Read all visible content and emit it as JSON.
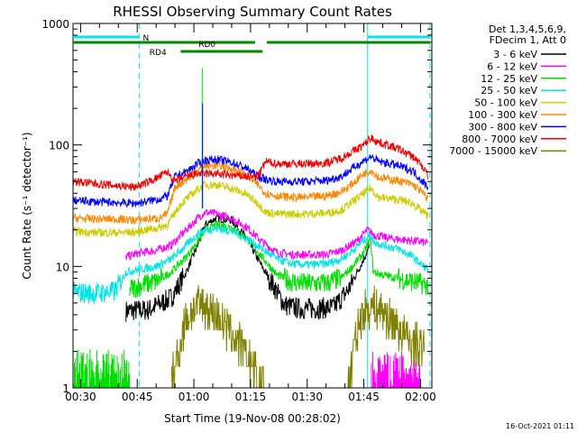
{
  "chart_data": {
    "type": "line",
    "title": "RHESSI Observing Summary Count Rates",
    "xlabel": "Start Time (19-Nov-08 00:28:02)",
    "ylabel": "Count Rate (s⁻¹ detector⁻¹)",
    "yscale": "log",
    "xlim_minutes": [
      28.0,
      123.0
    ],
    "ylim": [
      1,
      1000
    ],
    "x_ticks": [
      {
        "minute": 30,
        "label": "00:30"
      },
      {
        "minute": 45,
        "label": "00:45"
      },
      {
        "minute": 60,
        "label": "01:00"
      },
      {
        "minute": 75,
        "label": "01:15"
      },
      {
        "minute": 90,
        "label": "01:30"
      },
      {
        "minute": 105,
        "label": "01:45"
      },
      {
        "minute": 120,
        "label": "02:00"
      }
    ],
    "y_ticks": [
      {
        "value": 1,
        "label": "1"
      },
      {
        "value": 10,
        "label": "10"
      },
      {
        "value": 100,
        "label": "100"
      },
      {
        "value": 1000,
        "label": "1000"
      }
    ],
    "legend": {
      "placement": "right",
      "header": [
        "Det 1,3,4,5,6,9,",
        "FDecim 1, Att 0"
      ]
    },
    "series": [
      {
        "name": "3 - 6 keV",
        "color": "#000000",
        "points": [
          [
            42,
            4.3
          ],
          [
            48,
            4.4
          ],
          [
            54,
            5.5
          ],
          [
            58,
            9
          ],
          [
            61,
            15
          ],
          [
            63,
            22
          ],
          [
            66,
            25
          ],
          [
            70,
            24
          ],
          [
            74,
            17
          ],
          [
            78,
            10
          ],
          [
            81,
            7
          ],
          [
            84,
            4.8
          ],
          [
            88,
            4.5
          ],
          [
            93,
            4.5
          ],
          [
            97,
            4.6
          ],
          [
            101,
            6.5
          ],
          [
            104,
            10
          ],
          [
            106.5,
            14.5
          ]
        ]
      },
      {
        "name": "6 - 12 keV",
        "color": "#ff00ff",
        "points": [
          [
            42,
            12
          ],
          [
            46,
            13
          ],
          [
            50,
            13.5
          ],
          [
            54,
            15
          ],
          [
            58,
            20
          ],
          [
            61,
            25
          ],
          [
            63,
            28
          ],
          [
            66,
            27
          ],
          [
            70,
            25
          ],
          [
            74,
            21
          ],
          [
            78,
            16
          ],
          [
            82,
            13
          ],
          [
            86,
            12.5
          ],
          [
            90,
            12.5
          ],
          [
            95,
            12.5
          ],
          [
            99,
            13.5
          ],
          [
            103,
            16
          ],
          [
            106,
            20
          ],
          [
            108,
            18
          ],
          [
            112,
            17
          ],
          [
            116,
            16.5
          ],
          [
            120,
            16
          ],
          [
            122,
            15.5
          ]
        ]
      },
      {
        "name": "12 - 25 keV",
        "color": "#00dd00",
        "points": [
          [
            43,
            6.5
          ],
          [
            46,
            7
          ],
          [
            50,
            7.5
          ],
          [
            54,
            9
          ],
          [
            58,
            12
          ],
          [
            61,
            16
          ],
          [
            63,
            20
          ],
          [
            66,
            22
          ],
          [
            70,
            21
          ],
          [
            74,
            17
          ],
          [
            78,
            12
          ],
          [
            82,
            8.5
          ],
          [
            86,
            7.5
          ],
          [
            90,
            7.2
          ],
          [
            95,
            7.3
          ],
          [
            99,
            8
          ],
          [
            102,
            10
          ],
          [
            105,
            13
          ],
          [
            106.8,
            17
          ],
          [
            107.5,
            9
          ],
          [
            110,
            8.5
          ],
          [
            114,
            8
          ],
          [
            118,
            7.5
          ],
          [
            122,
            7
          ]
        ]
      },
      {
        "name": "25 - 50 keV",
        "color": "#00e5e5",
        "points": [
          [
            28,
            6.1
          ],
          [
            34,
            6
          ],
          [
            39,
            6.2
          ],
          [
            42,
            9
          ],
          [
            46,
            9.5
          ],
          [
            50,
            10
          ],
          [
            54,
            11.5
          ],
          [
            58,
            15
          ],
          [
            61,
            18.5
          ],
          [
            63,
            20
          ],
          [
            66,
            20.5
          ],
          [
            70,
            19.5
          ],
          [
            74,
            17
          ],
          [
            78,
            14
          ],
          [
            82,
            11.5
          ],
          [
            86,
            10.5
          ],
          [
            90,
            10.3
          ],
          [
            95,
            10.5
          ],
          [
            99,
            11.5
          ],
          [
            102,
            13.5
          ],
          [
            105,
            16.5
          ],
          [
            106.8,
            18
          ],
          [
            107.5,
            16
          ],
          [
            110,
            15
          ],
          [
            114,
            14
          ],
          [
            118,
            12
          ],
          [
            120,
            10.5
          ],
          [
            122,
            9.5
          ]
        ]
      },
      {
        "name": "50 - 100 keV",
        "color": "#cccc00",
        "points": [
          [
            28,
            19.5
          ],
          [
            34,
            19
          ],
          [
            40,
            19
          ],
          [
            44,
            19
          ],
          [
            47,
            20
          ],
          [
            50,
            20.5
          ],
          [
            53,
            22
          ],
          [
            56,
            31
          ],
          [
            58,
            36
          ],
          [
            61,
            43
          ],
          [
            63,
            47
          ],
          [
            66,
            47
          ],
          [
            70,
            44
          ],
          [
            74,
            39
          ],
          [
            77,
            33
          ],
          [
            79,
            28
          ],
          [
            82,
            27
          ],
          [
            86,
            27
          ],
          [
            90,
            27
          ],
          [
            95,
            27.5
          ],
          [
            99,
            29
          ],
          [
            102,
            34
          ],
          [
            105,
            40
          ],
          [
            106.8,
            44
          ],
          [
            109,
            37
          ],
          [
            112,
            36
          ],
          [
            115,
            35
          ],
          [
            118,
            33
          ],
          [
            120,
            29
          ],
          [
            122,
            26
          ]
        ]
      },
      {
        "name": "100 - 300 keV",
        "color": "#ff8800",
        "points": [
          [
            28,
            25
          ],
          [
            34,
            24.5
          ],
          [
            40,
            24.5
          ],
          [
            44,
            24
          ],
          [
            47,
            24.5
          ],
          [
            51,
            25
          ],
          [
            53,
            27
          ],
          [
            55,
            45
          ],
          [
            58,
            52
          ],
          [
            61,
            62
          ],
          [
            63,
            67
          ],
          [
            66,
            68
          ],
          [
            70,
            64
          ],
          [
            74,
            56
          ],
          [
            77,
            47
          ],
          [
            79,
            40
          ],
          [
            82,
            38
          ],
          [
            86,
            37
          ],
          [
            90,
            37
          ],
          [
            95,
            38
          ],
          [
            99,
            41
          ],
          [
            102,
            48
          ],
          [
            105,
            58
          ],
          [
            106.8,
            62
          ],
          [
            109,
            54
          ],
          [
            112,
            52
          ],
          [
            115,
            50
          ],
          [
            118,
            47
          ],
          [
            120,
            42
          ],
          [
            122,
            36
          ]
        ]
      },
      {
        "name": "300 - 800 keV",
        "color": "#0000ff",
        "points": [
          [
            28,
            35
          ],
          [
            34,
            34
          ],
          [
            40,
            33.5
          ],
          [
            44,
            33
          ],
          [
            47,
            34
          ],
          [
            51,
            36
          ],
          [
            53,
            38
          ],
          [
            55,
            55
          ],
          [
            58,
            60
          ],
          [
            61,
            70
          ],
          [
            63,
            75
          ],
          [
            66,
            76
          ],
          [
            70,
            72
          ],
          [
            74,
            64
          ],
          [
            77,
            55
          ],
          [
            79,
            52
          ],
          [
            82,
            50
          ],
          [
            86,
            50
          ],
          [
            90,
            50
          ],
          [
            95,
            51
          ],
          [
            99,
            55
          ],
          [
            102,
            64
          ],
          [
            105,
            74
          ],
          [
            106.8,
            80
          ],
          [
            109,
            73
          ],
          [
            112,
            70
          ],
          [
            115,
            66
          ],
          [
            118,
            61
          ],
          [
            120,
            52
          ],
          [
            122,
            45
          ]
        ]
      },
      {
        "name": "800 - 7000 keV",
        "color": "#ee0000",
        "points": [
          [
            28,
            50
          ],
          [
            34,
            48
          ],
          [
            40,
            46
          ],
          [
            44,
            45
          ],
          [
            47,
            48
          ],
          [
            51,
            55
          ],
          [
            53,
            60
          ],
          [
            55,
            50
          ],
          [
            58,
            55
          ],
          [
            61,
            58
          ],
          [
            63,
            58
          ],
          [
            66,
            58
          ],
          [
            70,
            56
          ],
          [
            74,
            55
          ],
          [
            77,
            55
          ],
          [
            79,
            73
          ],
          [
            82,
            70
          ],
          [
            86,
            70
          ],
          [
            90,
            70
          ],
          [
            95,
            71
          ],
          [
            99,
            78
          ],
          [
            102,
            88
          ],
          [
            105,
            100
          ],
          [
            106.8,
            115
          ],
          [
            109,
            105
          ],
          [
            112,
            98
          ],
          [
            115,
            90
          ],
          [
            118,
            80
          ],
          [
            120,
            70
          ],
          [
            122,
            56
          ]
        ]
      },
      {
        "name": "7000 - 15000 keV",
        "color": "#808000",
        "points": [
          [
            54,
            1.1
          ],
          [
            55,
            1.5
          ],
          [
            56,
            2
          ],
          [
            57,
            3
          ],
          [
            58,
            3.8
          ],
          [
            60,
            4.6
          ],
          [
            62,
            4.8
          ],
          [
            64,
            4.5
          ],
          [
            66,
            4
          ],
          [
            68,
            3.3
          ],
          [
            70,
            2.8
          ],
          [
            72,
            2.3
          ],
          [
            74,
            1.8
          ],
          [
            76,
            1.4
          ],
          [
            78,
            1.1
          ],
          [
            79,
            1.0
          ],
          [
            101,
            1.1
          ],
          [
            102,
            1.8
          ],
          [
            103,
            2.7
          ],
          [
            104,
            3.5
          ],
          [
            105,
            4.3
          ],
          [
            107,
            4.7
          ],
          [
            109,
            4.5
          ],
          [
            111,
            4
          ],
          [
            113,
            3.4
          ],
          [
            115,
            2.9
          ],
          [
            117,
            2.4
          ],
          [
            119,
            2.2
          ],
          [
            121,
            2
          ]
        ]
      }
    ],
    "annotations": {
      "bars": [
        {
          "label": "N",
          "color": "#00e5e5",
          "row": "N",
          "segments": [
            [
              28,
              45.5
            ],
            [
              106,
              122.5
            ]
          ]
        },
        {
          "label": "RD0",
          "color": "#008800",
          "row": "RD0",
          "segments": [
            [
              28,
              76.2
            ],
            [
              79.3,
              122.5
            ]
          ]
        },
        {
          "label": "RD4",
          "color": "#008800",
          "row": "RD4",
          "segments": [
            [
              56.5,
              78.2
            ]
          ]
        }
      ],
      "vlines": [
        {
          "minute": 45.5,
          "color": "#00e5e5",
          "style": "dashed"
        },
        {
          "minute": 106,
          "color": "#00e5e5",
          "style": "solid"
        },
        {
          "minute": 122.5,
          "color": "#00e5e5",
          "style": "dashed"
        }
      ],
      "spikes": [
        {
          "minute": 62.2,
          "value": 430,
          "color": "#00dd00"
        },
        {
          "minute": 62.3,
          "value": 220,
          "color": "#0000ff"
        }
      ]
    }
  },
  "footer": {
    "timestamp": "16-Oct-2021 01:11"
  }
}
